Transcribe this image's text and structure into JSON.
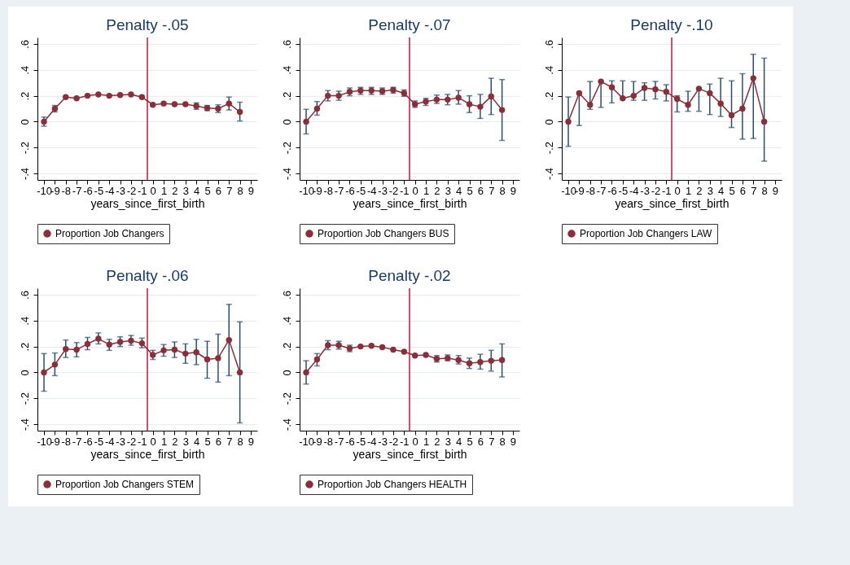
{
  "chart_data": [
    {
      "type": "line",
      "title": "Penalty -.05",
      "xlabel": "years_since_first_birth",
      "x": [
        -10,
        -9,
        -8,
        -7,
        -6,
        -5,
        -4,
        -3,
        -2,
        -1,
        0,
        1,
        2,
        3,
        4,
        5,
        6,
        7,
        8
      ],
      "xlim": [
        -10.6,
        9.6
      ],
      "xticks": [
        -10,
        -9,
        -8,
        -7,
        -6,
        -5,
        -4,
        -3,
        -2,
        -1,
        0,
        1,
        2,
        3,
        4,
        5,
        6,
        7,
        8,
        9
      ],
      "ylim": [
        -0.45,
        0.65
      ],
      "yticks": [
        {
          "value": -0.4,
          "label": "-.4"
        },
        {
          "value": -0.2,
          "label": "-.2"
        },
        {
          "value": 0,
          "label": "0"
        },
        {
          "value": 0.2,
          "label": ".2"
        },
        {
          "value": 0.4,
          "label": ".4"
        },
        {
          "value": 0.6,
          "label": ".6"
        }
      ],
      "grid": "y",
      "legend": "bottom",
      "marker": "circle",
      "line_style": "solid",
      "ref_lines": [
        {
          "axis": "x",
          "value": -0.5,
          "color": "#d0103a"
        }
      ],
      "series": [
        {
          "name": "Proportion Job Changers",
          "color": "#8b2e3a",
          "values": [
            0,
            0.1,
            0.19,
            0.18,
            0.2,
            0.21,
            0.2,
            0.205,
            0.21,
            0.19,
            0.13,
            0.14,
            0.135,
            0.135,
            0.12,
            0.105,
            0.1,
            0.14,
            0.075
          ],
          "errors": [
            [
              -0.035,
              0.035
            ],
            [
              0.075,
              0.125
            ],
            null,
            null,
            null,
            null,
            null,
            null,
            null,
            null,
            null,
            null,
            null,
            null,
            [
              0.095,
              0.145
            ],
            [
              0.085,
              0.125
            ],
            [
              0.07,
              0.13
            ],
            [
              0.09,
              0.19
            ],
            [
              0.005,
              0.15
            ]
          ]
        }
      ]
    },
    {
      "type": "line",
      "title": "Penalty -.07",
      "xlabel": "years_since_first_birth",
      "x": [
        -10,
        -9,
        -8,
        -7,
        -6,
        -5,
        -4,
        -3,
        -2,
        -1,
        0,
        1,
        2,
        3,
        4,
        5,
        6,
        7,
        8
      ],
      "xlim": [
        -10.6,
        9.6
      ],
      "xticks": [
        -10,
        -9,
        -8,
        -7,
        -6,
        -5,
        -4,
        -3,
        -2,
        -1,
        0,
        1,
        2,
        3,
        4,
        5,
        6,
        7,
        8,
        9
      ],
      "ylim": [
        -0.45,
        0.65
      ],
      "yticks": [
        {
          "value": -0.4,
          "label": "-.4"
        },
        {
          "value": -0.2,
          "label": "-.2"
        },
        {
          "value": 0,
          "label": "0"
        },
        {
          "value": 0.2,
          "label": ".2"
        },
        {
          "value": 0.4,
          "label": ".4"
        },
        {
          "value": 0.6,
          "label": ".6"
        }
      ],
      "grid": "y",
      "legend": "bottom",
      "marker": "circle",
      "line_style": "solid",
      "ref_lines": [
        {
          "axis": "x",
          "value": -0.5,
          "color": "#d0103a"
        }
      ],
      "series": [
        {
          "name": "Proportion Job Changers BUS",
          "color": "#8b2e3a",
          "values": [
            0,
            0.1,
            0.2,
            0.2,
            0.23,
            0.24,
            0.24,
            0.235,
            0.245,
            0.22,
            0.135,
            0.155,
            0.17,
            0.17,
            0.185,
            0.135,
            0.115,
            0.195,
            0.09
          ],
          "errors": [
            [
              -0.095,
              0.095
            ],
            [
              0.05,
              0.155
            ],
            [
              0.16,
              0.24
            ],
            [
              0.165,
              0.235
            ],
            [
              0.2,
              0.26
            ],
            [
              0.21,
              0.265
            ],
            [
              0.21,
              0.265
            ],
            [
              0.21,
              0.26
            ],
            [
              0.22,
              0.265
            ],
            [
              0.195,
              0.245
            ],
            [
              0.11,
              0.16
            ],
            [
              0.125,
              0.18
            ],
            [
              0.14,
              0.205
            ],
            [
              0.13,
              0.21
            ],
            [
              0.135,
              0.24
            ],
            [
              0.07,
              0.2
            ],
            [
              0.025,
              0.21
            ],
            [
              0.055,
              0.335
            ],
            [
              -0.145,
              0.325
            ]
          ]
        }
      ]
    },
    {
      "type": "line",
      "title": "Penalty  -.10",
      "xlabel": "years_since_first_birth",
      "x": [
        -10,
        -9,
        -8,
        -7,
        -6,
        -5,
        -4,
        -3,
        -2,
        -1,
        0,
        1,
        2,
        3,
        4,
        5,
        6,
        7,
        8
      ],
      "xlim": [
        -10.6,
        9.6
      ],
      "xticks": [
        -10,
        -9,
        -8,
        -7,
        -6,
        -5,
        -4,
        -3,
        -2,
        -1,
        0,
        1,
        2,
        3,
        4,
        5,
        6,
        7,
        8,
        9
      ],
      "ylim": [
        -0.45,
        0.65
      ],
      "yticks": [
        {
          "value": -0.4,
          "label": "-.4"
        },
        {
          "value": -0.2,
          "label": "-.2"
        },
        {
          "value": 0,
          "label": "0"
        },
        {
          "value": 0.2,
          "label": ".2"
        },
        {
          "value": 0.4,
          "label": ".4"
        },
        {
          "value": 0.6,
          "label": ".6"
        }
      ],
      "grid": "y",
      "legend": "bottom",
      "marker": "circle",
      "line_style": "solid",
      "ref_lines": [
        {
          "axis": "x",
          "value": -0.5,
          "color": "#d0103a"
        }
      ],
      "series": [
        {
          "name": "Proportion Job Changers LAW",
          "color": "#8b2e3a",
          "values": [
            0,
            0.22,
            0.13,
            0.31,
            0.265,
            0.18,
            0.2,
            0.26,
            0.25,
            0.23,
            0.175,
            0.13,
            0.255,
            0.22,
            0.14,
            0.05,
            0.1,
            0.335,
            0
          ],
          "errors": [
            [
              -0.19,
              0.19
            ],
            [
              -0.03,
              0.22
            ],
            [
              0.095,
              0.31
            ],
            [
              0.11,
              0.31
            ],
            [
              0.145,
              0.315
            ],
            [
              0.18,
              0.315
            ],
            [
              0.165,
              0.31
            ],
            [
              0.165,
              0.3
            ],
            [
              0.175,
              0.31
            ],
            [
              0.16,
              0.285
            ],
            [
              0.075,
              0.2
            ],
            [
              0.08,
              0.235
            ],
            [
              0.08,
              0.255
            ],
            [
              0.055,
              0.29
            ],
            [
              0.04,
              0.335
            ],
            [
              -0.045,
              0.315
            ],
            [
              -0.135,
              0.37
            ],
            [
              -0.13,
              0.52
            ],
            [
              -0.305,
              0.49
            ]
          ]
        }
      ]
    },
    {
      "type": "line",
      "title": "Penalty  -.06",
      "xlabel": "years_since_first_birth",
      "x": [
        -10,
        -9,
        -8,
        -7,
        -6,
        -5,
        -4,
        -3,
        -2,
        -1,
        0,
        1,
        2,
        3,
        4,
        5,
        6,
        7,
        8
      ],
      "xlim": [
        -10.6,
        9.6
      ],
      "xticks": [
        -10,
        -9,
        -8,
        -7,
        -6,
        -5,
        -4,
        -3,
        -2,
        -1,
        0,
        1,
        2,
        3,
        4,
        5,
        6,
        7,
        8,
        9
      ],
      "ylim": [
        -0.45,
        0.65
      ],
      "yticks": [
        {
          "value": -0.4,
          "label": "-.4"
        },
        {
          "value": -0.2,
          "label": "-.2"
        },
        {
          "value": 0,
          "label": "0"
        },
        {
          "value": 0.2,
          "label": ".2"
        },
        {
          "value": 0.4,
          "label": ".4"
        },
        {
          "value": 0.6,
          "label": ".6"
        }
      ],
      "grid": "y",
      "legend": "bottom",
      "marker": "circle",
      "line_style": "solid",
      "ref_lines": [
        {
          "axis": "x",
          "value": -0.5,
          "color": "#d0103a"
        }
      ],
      "series": [
        {
          "name": "Proportion Job Changers STEM",
          "color": "#8b2e3a",
          "values": [
            0,
            0.06,
            0.18,
            0.175,
            0.22,
            0.26,
            0.215,
            0.235,
            0.245,
            0.225,
            0.135,
            0.17,
            0.175,
            0.145,
            0.155,
            0.1,
            0.11,
            0.25,
            0
          ],
          "errors": [
            [
              -0.145,
              0.145
            ],
            [
              -0.025,
              0.15
            ],
            [
              0.115,
              0.25
            ],
            [
              0.12,
              0.23
            ],
            [
              0.175,
              0.27
            ],
            [
              0.22,
              0.305
            ],
            [
              0.17,
              0.255
            ],
            [
              0.2,
              0.275
            ],
            [
              0.21,
              0.285
            ],
            [
              0.19,
              0.265
            ],
            [
              0.1,
              0.17
            ],
            [
              0.125,
              0.215
            ],
            [
              0.115,
              0.235
            ],
            [
              0.07,
              0.22
            ],
            [
              0.06,
              0.255
            ],
            [
              -0.045,
              0.24
            ],
            [
              -0.075,
              0.295
            ],
            [
              -0.025,
              0.525
            ],
            [
              -0.39,
              0.39
            ]
          ]
        }
      ]
    },
    {
      "type": "line",
      "title": "Penalty  -.02",
      "xlabel": "years_since_first_birth",
      "x": [
        -10,
        -9,
        -8,
        -7,
        -6,
        -5,
        -4,
        -3,
        -2,
        -1,
        0,
        1,
        2,
        3,
        4,
        5,
        6,
        7,
        8
      ],
      "xlim": [
        -10.6,
        9.6
      ],
      "xticks": [
        -10,
        -9,
        -8,
        -7,
        -6,
        -5,
        -4,
        -3,
        -2,
        -1,
        0,
        1,
        2,
        3,
        4,
        5,
        6,
        7,
        8,
        9
      ],
      "ylim": [
        -0.45,
        0.65
      ],
      "yticks": [
        {
          "value": -0.4,
          "label": "-.4"
        },
        {
          "value": -0.2,
          "label": "-.2"
        },
        {
          "value": 0,
          "label": "0"
        },
        {
          "value": 0.2,
          "label": ".2"
        },
        {
          "value": 0.4,
          "label": ".4"
        },
        {
          "value": 0.6,
          "label": ".6"
        }
      ],
      "grid": "y",
      "legend": "bottom",
      "marker": "circle",
      "line_style": "solid",
      "ref_lines": [
        {
          "axis": "x",
          "value": -0.5,
          "color": "#d0103a"
        }
      ],
      "series": [
        {
          "name": "Proportion Job Changers HEALTH",
          "color": "#8b2e3a",
          "values": [
            0,
            0.1,
            0.21,
            0.21,
            0.185,
            0.2,
            0.205,
            0.195,
            0.175,
            0.16,
            0.13,
            0.135,
            0.105,
            0.11,
            0.095,
            0.07,
            0.08,
            0.09,
            0.095
          ],
          "errors": [
            [
              -0.09,
              0.09
            ],
            [
              0.05,
              0.145
            ],
            [
              0.175,
              0.245
            ],
            [
              0.18,
              0.24
            ],
            [
              0.16,
              0.21
            ],
            null,
            null,
            null,
            null,
            null,
            null,
            null,
            [
              0.08,
              0.13
            ],
            [
              0.09,
              0.135
            ],
            [
              0.065,
              0.13
            ],
            [
              0.03,
              0.11
            ],
            [
              0.025,
              0.14
            ],
            [
              0.01,
              0.17
            ],
            [
              -0.035,
              0.22
            ]
          ]
        }
      ]
    }
  ]
}
